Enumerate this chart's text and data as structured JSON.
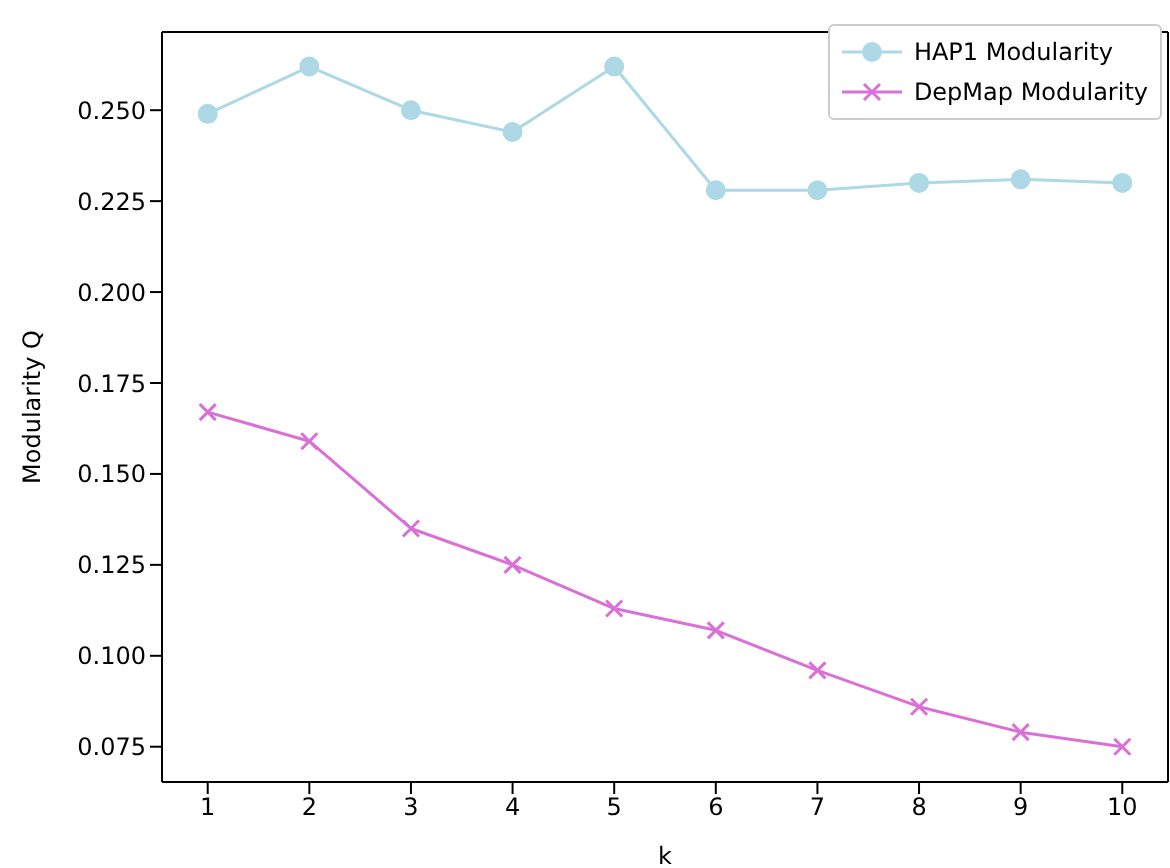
{
  "chart_data": {
    "type": "line",
    "xlabel": "k",
    "ylabel": "Modularity Q",
    "x": [
      1,
      2,
      3,
      4,
      5,
      6,
      7,
      8,
      9,
      10
    ],
    "series": [
      {
        "name": "HAP1 Modularity",
        "color": "#add8e6",
        "marker": "circle",
        "values": [
          0.249,
          0.262,
          0.25,
          0.244,
          0.262,
          0.228,
          0.228,
          0.23,
          0.231,
          0.23
        ]
      },
      {
        "name": "DepMap Modularity",
        "color": "#da70d6",
        "marker": "cross",
        "values": [
          0.167,
          0.159,
          0.135,
          0.125,
          0.113,
          0.107,
          0.096,
          0.086,
          0.079,
          0.075
        ]
      }
    ],
    "xlim": [
      0.55,
      10.45
    ],
    "xticks": [
      1,
      2,
      3,
      4,
      5,
      6,
      7,
      8,
      9,
      10
    ],
    "ylim": [
      0.0653,
      0.2715
    ],
    "yticks": [
      {
        "value": 0.075,
        "label": "0.075"
      },
      {
        "value": 0.1,
        "label": "0.100"
      },
      {
        "value": 0.125,
        "label": "0.125"
      },
      {
        "value": 0.15,
        "label": "0.150"
      },
      {
        "value": 0.175,
        "label": "0.175"
      },
      {
        "value": 0.2,
        "label": "0.200"
      },
      {
        "value": 0.225,
        "label": "0.225"
      },
      {
        "value": 0.25,
        "label": "0.250"
      }
    ],
    "grid": false,
    "legend": "top right",
    "line_style": "solid"
  }
}
